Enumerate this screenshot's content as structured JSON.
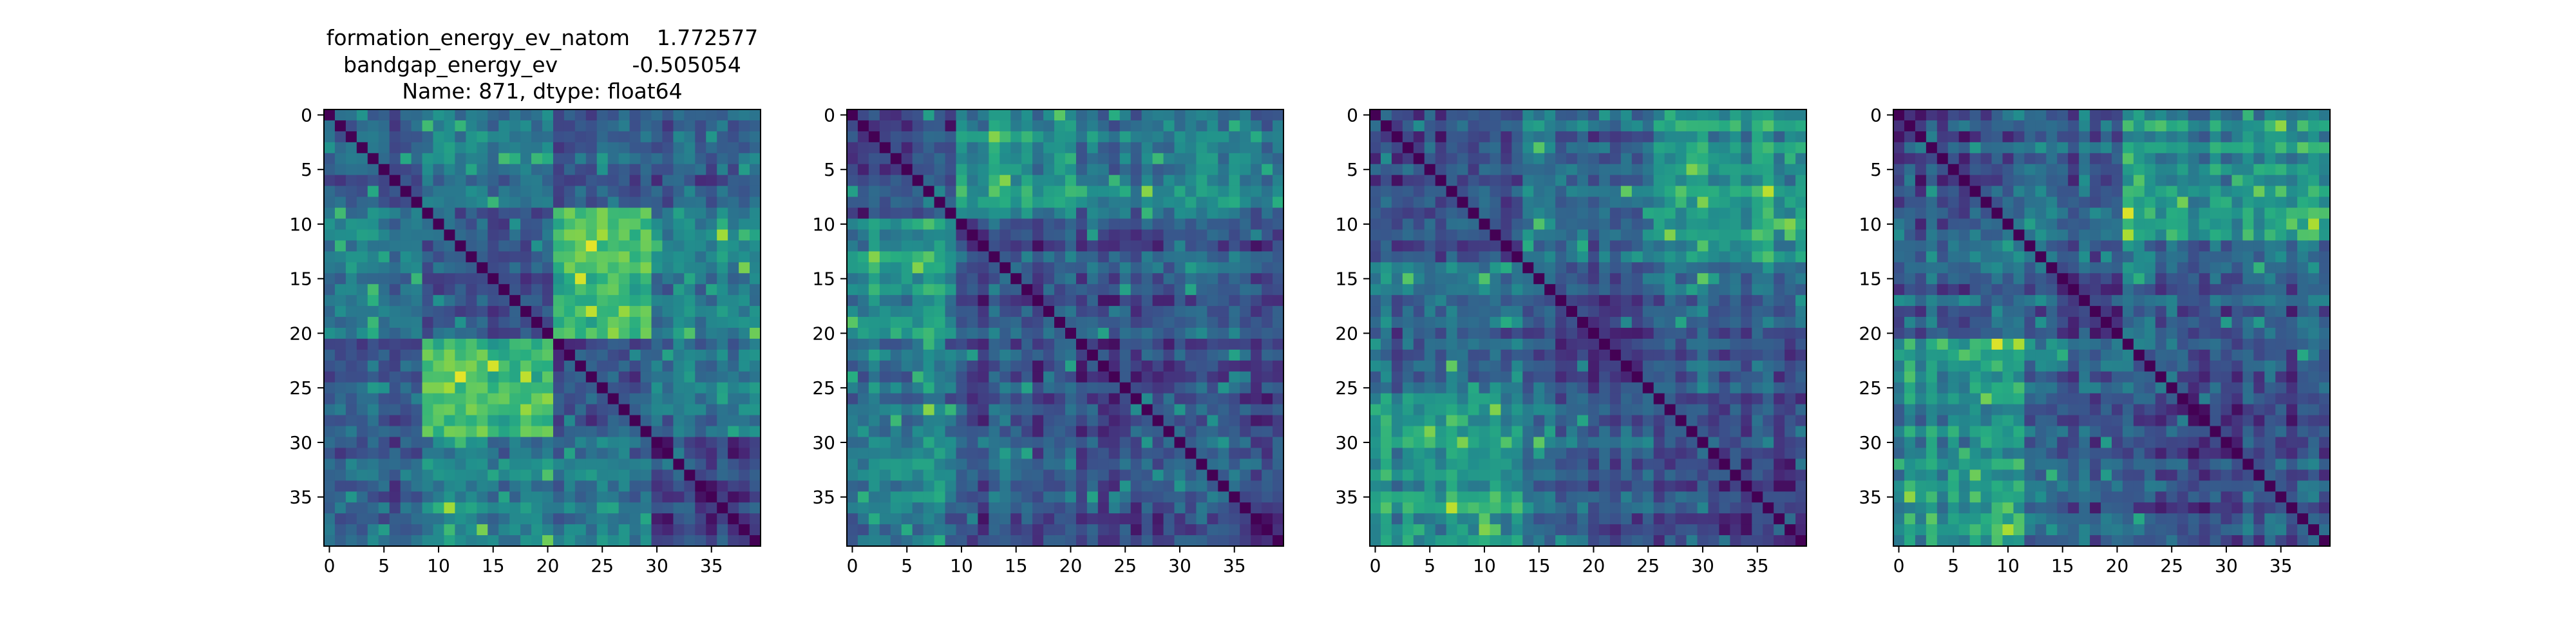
{
  "figure": {
    "title_lines": [
      "formation_energy_ev_natom    1.772577",
      "bandgap_energy_ev           -0.505054",
      "Name: 871, dtype: float64"
    ]
  },
  "chart_data": [
    {
      "type": "heatmap",
      "title": "",
      "xlabel": "",
      "ylabel": "",
      "size": 40,
      "x_ticks": [
        0,
        5,
        10,
        15,
        20,
        25,
        30,
        35
      ],
      "y_ticks": [
        0,
        5,
        10,
        15,
        20,
        25,
        30,
        35
      ],
      "colormap": "viridis",
      "color_range": [
        0,
        1
      ],
      "diagonal_value": 0,
      "groups": [
        [
          0,
          8
        ],
        [
          9,
          20
        ],
        [
          21,
          29
        ],
        [
          30,
          39
        ]
      ],
      "pair_levels": [
        [
          0.3,
          0.42,
          0.28,
          0.32
        ],
        [
          0.42,
          0.28,
          0.68,
          0.45
        ],
        [
          0.28,
          0.68,
          0.24,
          0.4
        ],
        [
          0.32,
          0.45,
          0.4,
          0.22
        ]
      ],
      "seed": 11
    },
    {
      "type": "heatmap",
      "title": "",
      "xlabel": "",
      "ylabel": "",
      "size": 40,
      "x_ticks": [
        0,
        5,
        10,
        15,
        20,
        25,
        30,
        35
      ],
      "y_ticks": [
        0,
        5,
        10,
        15,
        20,
        25,
        30,
        35
      ],
      "colormap": "viridis",
      "color_range": [
        0,
        1
      ],
      "diagonal_value": 0,
      "groups": [
        [
          0,
          9
        ],
        [
          10,
          20
        ],
        [
          21,
          39
        ]
      ],
      "pair_levels": [
        [
          0.28,
          0.52,
          0.42
        ],
        [
          0.52,
          0.24,
          0.26
        ],
        [
          0.42,
          0.26,
          0.22
        ]
      ],
      "seed": 23
    },
    {
      "type": "heatmap",
      "title": "",
      "xlabel": "",
      "ylabel": "",
      "size": 40,
      "x_ticks": [
        0,
        5,
        10,
        15,
        20,
        25,
        30,
        35
      ],
      "y_ticks": [
        0,
        5,
        10,
        15,
        20,
        25,
        30,
        35
      ],
      "colormap": "viridis",
      "color_range": [
        0,
        1
      ],
      "diagonal_value": 0,
      "groups": [
        [
          0,
          13
        ],
        [
          14,
          25
        ],
        [
          26,
          39
        ]
      ],
      "pair_levels": [
        [
          0.24,
          0.34,
          0.52
        ],
        [
          0.34,
          0.2,
          0.3
        ],
        [
          0.52,
          0.3,
          0.22
        ]
      ],
      "seed": 37
    },
    {
      "type": "heatmap",
      "title": "",
      "xlabel": "",
      "ylabel": "",
      "size": 40,
      "x_ticks": [
        0,
        5,
        10,
        15,
        20,
        25,
        30,
        35
      ],
      "y_ticks": [
        0,
        5,
        10,
        15,
        20,
        25,
        30,
        35
      ],
      "colormap": "viridis",
      "color_range": [
        0,
        1
      ],
      "diagonal_value": 0,
      "groups": [
        [
          0,
          11
        ],
        [
          12,
          20
        ],
        [
          21,
          39
        ]
      ],
      "pair_levels": [
        [
          0.24,
          0.3,
          0.5
        ],
        [
          0.3,
          0.22,
          0.3
        ],
        [
          0.5,
          0.3,
          0.24
        ]
      ],
      "seed": 53
    }
  ]
}
